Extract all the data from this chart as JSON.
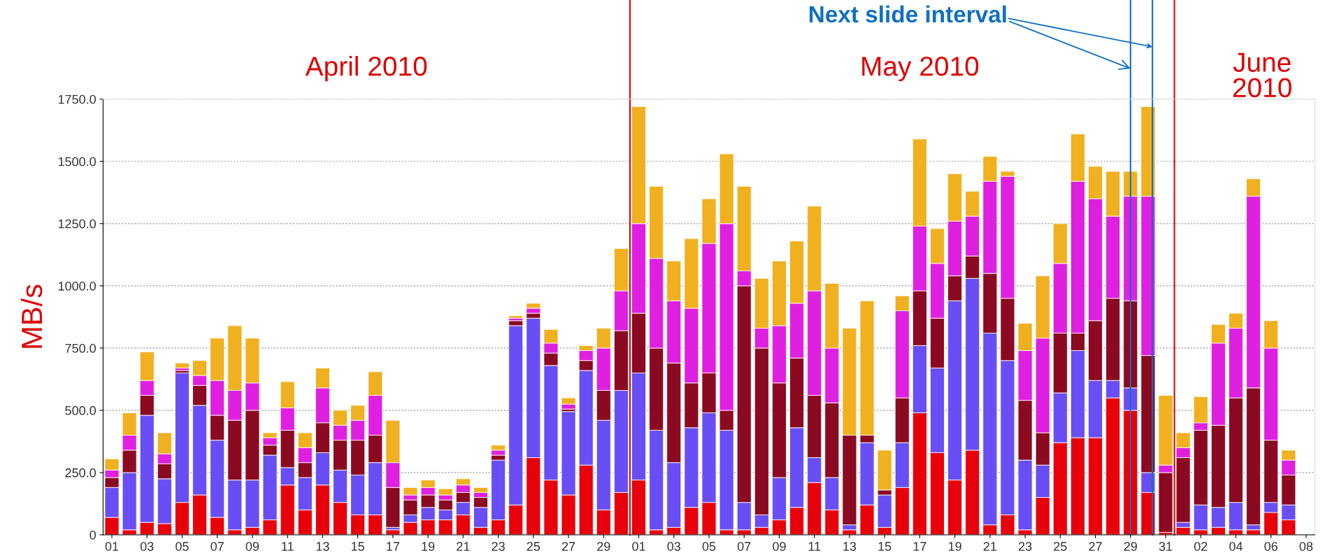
{
  "chart_data": {
    "type": "bar",
    "stacked": true,
    "ylabel": "MB/s",
    "x": [
      "2010-04-01",
      "2010-04-02",
      "2010-04-03",
      "2010-04-04",
      "2010-04-05",
      "2010-04-06",
      "2010-04-07",
      "2010-04-08",
      "2010-04-09",
      "2010-04-10",
      "2010-04-11",
      "2010-04-12",
      "2010-04-13",
      "2010-04-14",
      "2010-04-15",
      "2010-04-16",
      "2010-04-17",
      "2010-04-18",
      "2010-04-19",
      "2010-04-20",
      "2010-04-21",
      "2010-04-22",
      "2010-04-23",
      "2010-04-24",
      "2010-04-25",
      "2010-04-26",
      "2010-04-27",
      "2010-04-28",
      "2010-04-29",
      "2010-04-30",
      "2010-05-01",
      "2010-05-02",
      "2010-05-03",
      "2010-05-04",
      "2010-05-05",
      "2010-05-06",
      "2010-05-07",
      "2010-05-08",
      "2010-05-09",
      "2010-05-10",
      "2010-05-11",
      "2010-05-12",
      "2010-05-13",
      "2010-05-14",
      "2010-05-15",
      "2010-05-16",
      "2010-05-17",
      "2010-05-18",
      "2010-05-19",
      "2010-05-20",
      "2010-05-21",
      "2010-05-22",
      "2010-05-23",
      "2010-05-24",
      "2010-05-25",
      "2010-05-26",
      "2010-05-27",
      "2010-05-28",
      "2010-05-29",
      "2010-05-30",
      "2010-05-31",
      "2010-06-01",
      "2010-06-02",
      "2010-06-03",
      "2010-06-04",
      "2010-06-05",
      "2010-06-06",
      "2010-06-07",
      "2010-06-08"
    ],
    "series": [
      {
        "color": "#e8000b",
        "values": [
          70,
          20,
          50,
          45,
          130,
          160,
          70,
          20,
          30,
          60,
          200,
          100,
          200,
          130,
          80,
          80,
          20,
          50,
          60,
          60,
          80,
          30,
          60,
          120,
          310,
          220,
          160,
          280,
          100,
          170,
          220,
          20,
          30,
          110,
          130,
          20,
          20,
          30,
          60,
          110,
          210,
          100,
          20,
          120,
          30,
          190,
          490,
          330,
          220,
          340,
          40,
          80,
          20,
          150,
          370,
          390,
          390,
          550,
          500,
          170,
          10,
          30,
          20,
          30,
          20,
          20,
          90,
          60,
          0
        ]
      },
      {
        "color": "#6a4ef5",
        "values": [
          120,
          230,
          430,
          180,
          520,
          360,
          310,
          200,
          190,
          260,
          70,
          130,
          130,
          130,
          160,
          210,
          10,
          30,
          50,
          40,
          50,
          80,
          240,
          720,
          560,
          460,
          335,
          380,
          360,
          410,
          430,
          400,
          260,
          320,
          360,
          400,
          110,
          50,
          170,
          320,
          100,
          130,
          20,
          250,
          130,
          180,
          270,
          340,
          720,
          690,
          770,
          620,
          280,
          130,
          200,
          350,
          230,
          70,
          90,
          80,
          0,
          20,
          100,
          80,
          110,
          20,
          40,
          60,
          0
        ]
      },
      {
        "color": "#8b0a22",
        "values": [
          40,
          90,
          80,
          60,
          10,
          80,
          100,
          240,
          280,
          40,
          150,
          60,
          120,
          120,
          140,
          110,
          160,
          60,
          50,
          40,
          40,
          40,
          20,
          20,
          20,
          50,
          10,
          40,
          120,
          240,
          240,
          330,
          400,
          180,
          160,
          80,
          870,
          670,
          380,
          280,
          250,
          300,
          360,
          30,
          20,
          180,
          220,
          200,
          100,
          90,
          240,
          250,
          240,
          130,
          240,
          70,
          240,
          330,
          350,
          470,
          240,
          260,
          300,
          330,
          420,
          550,
          250,
          120,
          0
        ]
      },
      {
        "color": "#e020e0",
        "values": [
          30,
          60,
          60,
          40,
          10,
          40,
          140,
          120,
          110,
          30,
          90,
          60,
          140,
          60,
          80,
          160,
          100,
          20,
          30,
          20,
          30,
          20,
          20,
          10,
          20,
          40,
          20,
          40,
          170,
          160,
          360,
          360,
          250,
          300,
          520,
          750,
          60,
          80,
          230,
          220,
          420,
          220,
          0,
          0,
          0,
          350,
          260,
          220,
          220,
          160,
          370,
          490,
          200,
          380,
          280,
          610,
          490,
          330,
          420,
          640,
          30,
          40,
          30,
          330,
          280,
          770,
          370,
          60,
          0
        ]
      },
      {
        "color": "#f0b020",
        "values": [
          45,
          90,
          115,
          85,
          20,
          60,
          170,
          260,
          180,
          20,
          105,
          60,
          80,
          60,
          60,
          95,
          170,
          30,
          30,
          25,
          25,
          20,
          20,
          10,
          20,
          55,
          25,
          20,
          80,
          170,
          470,
          290,
          160,
          280,
          180,
          280,
          340,
          200,
          260,
          250,
          340,
          260,
          430,
          540,
          160,
          60,
          350,
          140,
          190,
          100,
          100,
          20,
          110,
          250,
          160,
          190,
          130,
          180,
          100,
          360,
          280,
          60,
          105,
          75,
          60,
          70,
          110,
          40,
          0
        ]
      }
    ],
    "ylim": [
      0,
      1750
    ],
    "yticks": [
      {
        "value": 0,
        "label": "0"
      },
      {
        "value": 250,
        "label": "250.0"
      },
      {
        "value": 500,
        "label": "500.0"
      },
      {
        "value": 750,
        "label": "750.0"
      },
      {
        "value": 1000,
        "label": "1000.0"
      },
      {
        "value": 1250,
        "label": "1250.0"
      },
      {
        "value": 1500,
        "label": "1500.0"
      },
      {
        "value": 1750,
        "label": "1750.0"
      }
    ],
    "xlim": [
      "2010-03-31T12:00",
      "2010-06-08T12:00"
    ],
    "xticks": [
      {
        "value": "2010-04-01",
        "label": "01"
      },
      {
        "value": "2010-04-03",
        "label": "03"
      },
      {
        "value": "2010-04-05",
        "label": "05"
      },
      {
        "value": "2010-04-07",
        "label": "07"
      },
      {
        "value": "2010-04-09",
        "label": "09"
      },
      {
        "value": "2010-04-11",
        "label": "11"
      },
      {
        "value": "2010-04-13",
        "label": "13"
      },
      {
        "value": "2010-04-15",
        "label": "15"
      },
      {
        "value": "2010-04-17",
        "label": "17"
      },
      {
        "value": "2010-04-19",
        "label": "19"
      },
      {
        "value": "2010-04-21",
        "label": "21"
      },
      {
        "value": "2010-04-23",
        "label": "23"
      },
      {
        "value": "2010-04-25",
        "label": "25"
      },
      {
        "value": "2010-04-27",
        "label": "27"
      },
      {
        "value": "2010-04-29",
        "label": "29"
      },
      {
        "value": "2010-05-01",
        "label": "01"
      },
      {
        "value": "2010-05-03",
        "label": "03"
      },
      {
        "value": "2010-05-05",
        "label": "05"
      },
      {
        "value": "2010-05-07",
        "label": "07"
      },
      {
        "value": "2010-05-09",
        "label": "09"
      },
      {
        "value": "2010-05-11",
        "label": "11"
      },
      {
        "value": "2010-05-13",
        "label": "13"
      },
      {
        "value": "2010-05-15",
        "label": "15"
      },
      {
        "value": "2010-05-17",
        "label": "17"
      },
      {
        "value": "2010-05-19",
        "label": "19"
      },
      {
        "value": "2010-05-21",
        "label": "21"
      },
      {
        "value": "2010-05-23",
        "label": "23"
      },
      {
        "value": "2010-05-25",
        "label": "25"
      },
      {
        "value": "2010-05-27",
        "label": "27"
      },
      {
        "value": "2010-05-29",
        "label": "29"
      },
      {
        "value": "2010-05-31",
        "label": "31"
      },
      {
        "value": "2010-06-02",
        "label": "02"
      },
      {
        "value": "2010-06-04",
        "label": "04"
      },
      {
        "value": "2010-06-06",
        "label": "06"
      },
      {
        "value": "2010-06-08",
        "label": "08"
      }
    ],
    "grid": "y",
    "legend": false,
    "ref_lines": [
      {
        "axis": "x",
        "value": "2010-04-30T12:00",
        "color": "#e00000"
      },
      {
        "axis": "x",
        "value": "2010-05-31T12:00",
        "color": "#e00000"
      },
      {
        "axis": "x",
        "value": "2010-05-29",
        "color": "#1070c0"
      },
      {
        "axis": "x",
        "value": "2010-05-30T06:00",
        "color": "#1070c0"
      }
    ],
    "annotations": [
      "April 2010",
      "May 2010",
      "June\n2010",
      "Next slide interval"
    ]
  }
}
